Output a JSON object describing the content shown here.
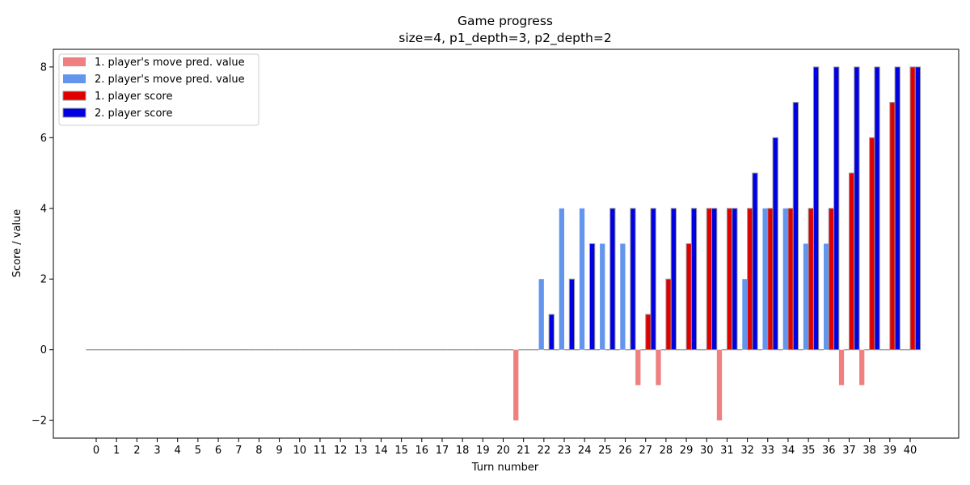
{
  "chart_data": {
    "type": "bar",
    "title": "Game progress",
    "subtitle": "size=4, p1_depth=3, p2_depth=2",
    "xlabel": "Turn number",
    "ylabel": "Score / value",
    "ylim": [
      -2.5,
      8.5
    ],
    "yticks": [
      -2,
      0,
      2,
      4,
      6,
      8
    ],
    "ytick_labels": [
      "−2",
      "0",
      "2",
      "4",
      "6",
      "8"
    ],
    "x": [
      0,
      1,
      2,
      3,
      4,
      5,
      6,
      7,
      8,
      9,
      10,
      11,
      12,
      13,
      14,
      15,
      16,
      17,
      18,
      19,
      20,
      21,
      22,
      23,
      24,
      25,
      26,
      27,
      28,
      29,
      30,
      31,
      32,
      33,
      34,
      35,
      36,
      37,
      38,
      39,
      40
    ],
    "grid": false,
    "legend_position": "top-left",
    "series": [
      {
        "name": "1. player's move pred. value",
        "color": "#f08080",
        "values": [
          0,
          0,
          0,
          0,
          0,
          0,
          0,
          0,
          0,
          0,
          0,
          0,
          0,
          0,
          0,
          0,
          0,
          0,
          0,
          0,
          0,
          -2,
          0,
          0,
          0,
          0,
          0,
          -1,
          -1,
          0,
          0,
          -2,
          0,
          0,
          0,
          0,
          0,
          -1,
          -1,
          0,
          0
        ]
      },
      {
        "name": "2. player's move pred. value",
        "color": "#6495ed",
        "values": [
          0,
          0,
          0,
          0,
          0,
          0,
          0,
          0,
          0,
          0,
          0,
          0,
          0,
          0,
          0,
          0,
          0,
          0,
          0,
          0,
          0,
          0,
          2,
          4,
          4,
          3,
          3,
          0,
          0,
          0,
          0,
          0,
          2,
          4,
          4,
          3,
          3,
          0,
          0,
          0,
          0
        ]
      },
      {
        "name": "1. player score",
        "color": "#e00000",
        "values": [
          0,
          0,
          0,
          0,
          0,
          0,
          0,
          0,
          0,
          0,
          0,
          0,
          0,
          0,
          0,
          0,
          0,
          0,
          0,
          0,
          0,
          0,
          0,
          0,
          0,
          0,
          0,
          1,
          2,
          3,
          4,
          4,
          4,
          4,
          4,
          4,
          4,
          5,
          6,
          7,
          8
        ]
      },
      {
        "name": "2. player score",
        "color": "#0000e0",
        "values": [
          0,
          0,
          0,
          0,
          0,
          0,
          0,
          0,
          0,
          0,
          0,
          0,
          0,
          0,
          0,
          0,
          0,
          0,
          0,
          0,
          0,
          0,
          1,
          2,
          3,
          4,
          4,
          4,
          4,
          4,
          4,
          4,
          5,
          6,
          7,
          8,
          8,
          8,
          8,
          8,
          8
        ]
      }
    ]
  }
}
